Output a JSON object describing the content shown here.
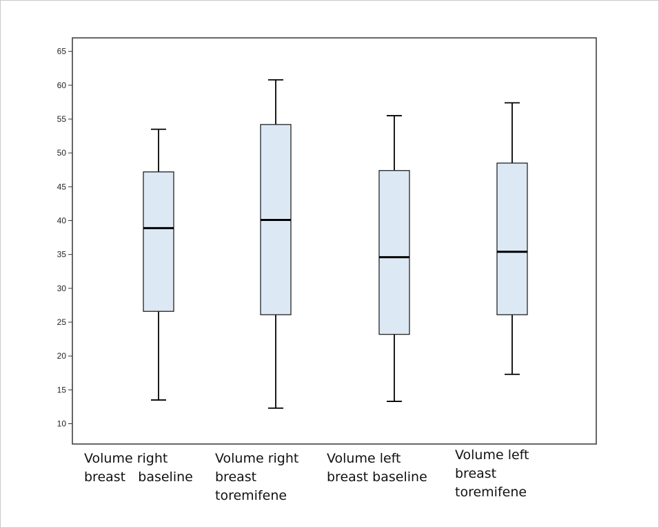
{
  "chart_data": {
    "type": "boxplot",
    "title": "",
    "xlabel": "",
    "ylabel": "",
    "ylim": [
      7,
      67
    ],
    "yticks": [
      10,
      15,
      20,
      25,
      30,
      35,
      40,
      45,
      50,
      55,
      60,
      65
    ],
    "grid": false,
    "box_color": "#dce9f5",
    "line_color": "#000000",
    "categories": [
      {
        "label": "Volume right\nbreast   baseline",
        "min": 13.5,
        "q1": 26.6,
        "median": 38.9,
        "q3": 47.2,
        "max": 53.5
      },
      {
        "label": "Volume right\nbreast\ntoremifene",
        "min": 12.3,
        "q1": 26.1,
        "median": 40.1,
        "q3": 54.2,
        "max": 60.8
      },
      {
        "label": "Volume left\nbreast baseline",
        "min": 13.3,
        "q1": 23.2,
        "median": 34.6,
        "q3": 47.4,
        "max": 55.5
      },
      {
        "label": "Volume left\nbreast\ntoremifene",
        "min": 17.3,
        "q1": 26.1,
        "median": 35.4,
        "q3": 48.5,
        "max": 57.4
      }
    ]
  }
}
